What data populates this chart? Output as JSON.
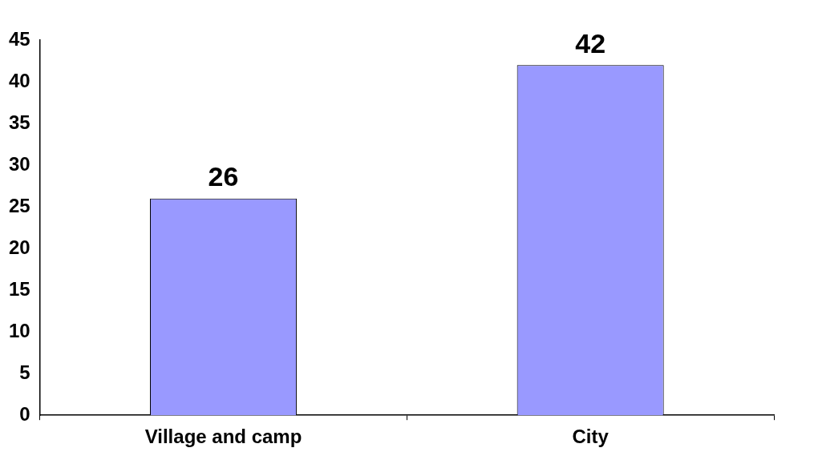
{
  "chart_data": {
    "type": "bar",
    "categories": [
      "Village and camp",
      "City"
    ],
    "values": [
      26,
      42
    ],
    "color": "#9999ff",
    "ylim": [
      0,
      45
    ],
    "yticks": [
      0,
      5,
      10,
      15,
      20,
      25,
      30,
      35,
      40,
      45
    ],
    "grid": false,
    "data_labels": true
  }
}
